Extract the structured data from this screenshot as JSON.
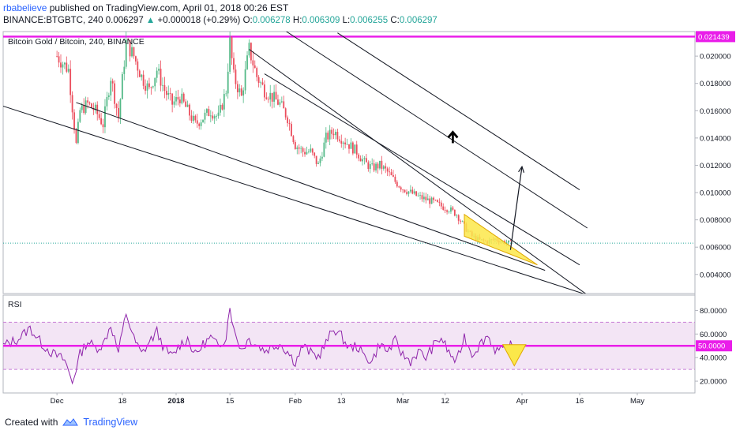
{
  "header": {
    "author": "rbabelieve",
    "published_text": "published on TradingView.com, April 01, 2018 00:26 EST",
    "symbol": "BINANCE:BTGBTC, 240",
    "last": "0.006297",
    "change_arrow": "▲",
    "change": "+0.000018 (+0.29%)",
    "open_label": "O:",
    "open": "0.006278",
    "high_label": "H:",
    "high": "0.006309",
    "low_label": "L:",
    "low": "0.006255",
    "close_label": "C:",
    "close": "0.006297"
  },
  "colors": {
    "accent_magenta": "#e91ee9",
    "up_candle": "#53b987",
    "down_candle": "#eb4d5c",
    "rsi_line": "#8e24aa",
    "wedge_fill": "#fbe84a",
    "trendline": "#131722",
    "author_link": "#2962ff",
    "dotted_current": "#26a69a"
  },
  "chart_data": [
    {
      "type": "candlestick",
      "title": "Bitcoin Gold / Bitcoin, 240, BINANCE",
      "ylim": [
        0.0026,
        0.0218
      ],
      "y_ticks": [
        "0.020000",
        "0.018000",
        "0.016000",
        "0.014000",
        "0.012000",
        "0.010000",
        "0.008000",
        "0.006000",
        "0.004000"
      ],
      "y_tick_values": [
        0.02,
        0.018,
        0.016,
        0.014,
        0.012,
        0.01,
        0.008,
        0.006,
        0.004
      ],
      "x_ticks": [
        "Dec",
        "18",
        "2018",
        "15",
        "Feb",
        "13",
        "Mar",
        "12",
        "Apr",
        "16",
        "May"
      ],
      "x_tick_days": [
        0,
        17,
        31,
        45,
        62,
        74,
        90,
        101,
        121,
        136,
        151
      ],
      "xlim_days": [
        -14,
        166
      ],
      "horizontal_line": {
        "value": 0.02143,
        "label": "0.021439"
      },
      "current_price": 0.006297,
      "series": [
        {
          "name": "close",
          "points": [
            [
              -14,
              0.0205
            ],
            [
              0,
              0.02
            ],
            [
              3,
              0.019
            ],
            [
              5,
              0.0135
            ],
            [
              6,
              0.016
            ],
            [
              8,
              0.0165
            ],
            [
              10,
              0.016
            ],
            [
              12,
              0.015
            ],
            [
              14,
              0.0185
            ],
            [
              16,
              0.0155
            ],
            [
              18,
              0.021
            ],
            [
              20,
              0.02
            ],
            [
              22,
              0.0185
            ],
            [
              24,
              0.0175
            ],
            [
              26,
              0.019
            ],
            [
              28,
              0.0175
            ],
            [
              30,
              0.0165
            ],
            [
              32,
              0.017
            ],
            [
              34,
              0.016
            ],
            [
              36,
              0.015
            ],
            [
              38,
              0.0155
            ],
            [
              40,
              0.016
            ],
            [
              42,
              0.0155
            ],
            [
              44,
              0.0175
            ],
            [
              45,
              0.021
            ],
            [
              46,
              0.0185
            ],
            [
              48,
              0.017
            ],
            [
              50,
              0.0205
            ],
            [
              52,
              0.0185
            ],
            [
              54,
              0.0175
            ],
            [
              56,
              0.017
            ],
            [
              58,
              0.0165
            ],
            [
              60,
              0.0155
            ],
            [
              62,
              0.0135
            ],
            [
              64,
              0.013
            ],
            [
              66,
              0.013
            ],
            [
              68,
              0.012
            ],
            [
              70,
              0.014
            ],
            [
              72,
              0.0145
            ],
            [
              74,
              0.014
            ],
            [
              76,
              0.0135
            ],
            [
              78,
              0.013
            ],
            [
              80,
              0.0122
            ],
            [
              82,
              0.0118
            ],
            [
              84,
              0.012
            ],
            [
              86,
              0.0115
            ],
            [
              88,
              0.0108
            ],
            [
              90,
              0.0103
            ],
            [
              92,
              0.01
            ],
            [
              94,
              0.0097
            ],
            [
              96,
              0.0095
            ],
            [
              98,
              0.0093
            ],
            [
              100,
              0.009
            ],
            [
              102,
              0.0088
            ],
            [
              104,
              0.0084
            ],
            [
              106,
              0.0075
            ],
            [
              108,
              0.0068
            ],
            [
              110,
              0.0065
            ],
            [
              112,
              0.0064
            ],
            [
              114,
              0.0066
            ],
            [
              116,
              0.0064
            ],
            [
              118,
              0.0063
            ]
          ]
        }
      ],
      "annotations": [
        {
          "type": "trendline",
          "from": [
            -18,
            0.0167
          ],
          "to": [
            138,
            0.0025
          ]
        },
        {
          "type": "trendline",
          "from": [
            5,
            0.0166
          ],
          "to": [
            127,
            0.0043
          ]
        },
        {
          "type": "trendline",
          "from": [
            50,
            0.0205
          ],
          "to": [
            138,
            0.0025
          ]
        },
        {
          "type": "trendline",
          "from": [
            54,
            0.0187
          ],
          "to": [
            136,
            0.0047
          ]
        },
        {
          "type": "trendline",
          "from": [
            57,
            0.0223
          ],
          "to": [
            138,
            0.0074
          ]
        },
        {
          "type": "trendline",
          "from": [
            73,
            0.0217
          ],
          "to": [
            136,
            0.0102
          ]
        },
        {
          "type": "triangle",
          "points": [
            [
              106,
              0.0084
            ],
            [
              106,
              0.0068
            ],
            [
              125,
              0.0047
            ]
          ]
        },
        {
          "type": "arrow",
          "from": [
            118,
            0.0058
          ],
          "to": [
            121,
            0.0119
          ]
        },
        {
          "type": "up-arrow-glyph",
          "at": [
            103,
            0.0142
          ]
        }
      ]
    },
    {
      "type": "line",
      "title": "RSI",
      "ylim": [
        10,
        93
      ],
      "y_ticks": [
        "80.0000",
        "60.0000",
        "40.0000",
        "20.0000"
      ],
      "y_tick_values": [
        80,
        60,
        40,
        20
      ],
      "band": [
        30,
        70
      ],
      "midline": {
        "value": 50,
        "label": "50.0000"
      },
      "series": [
        {
          "name": "RSI",
          "points": [
            [
              -14,
              50
            ],
            [
              -10,
              56
            ],
            [
              -7,
              65
            ],
            [
              -4,
              52
            ],
            [
              -1,
              43
            ],
            [
              2,
              38
            ],
            [
              4,
              19
            ],
            [
              6,
              43
            ],
            [
              8,
              54
            ],
            [
              10,
              48
            ],
            [
              12,
              51
            ],
            [
              14,
              68
            ],
            [
              16,
              44
            ],
            [
              18,
              78
            ],
            [
              20,
              56
            ],
            [
              22,
              43
            ],
            [
              24,
              53
            ],
            [
              26,
              62
            ],
            [
              28,
              47
            ],
            [
              30,
              41
            ],
            [
              32,
              51
            ],
            [
              34,
              56
            ],
            [
              36,
              42
            ],
            [
              38,
              51
            ],
            [
              40,
              57
            ],
            [
              42,
              49
            ],
            [
              44,
              58
            ],
            [
              45,
              85
            ],
            [
              46,
              63
            ],
            [
              48,
              47
            ],
            [
              50,
              56
            ],
            [
              52,
              51
            ],
            [
              54,
              46
            ],
            [
              56,
              49
            ],
            [
              58,
              52
            ],
            [
              60,
              45
            ],
            [
              62,
              36
            ],
            [
              64,
              50
            ],
            [
              66,
              44
            ],
            [
              68,
              41
            ],
            [
              70,
              52
            ],
            [
              72,
              65
            ],
            [
              74,
              58
            ],
            [
              76,
              48
            ],
            [
              78,
              50
            ],
            [
              80,
              41
            ],
            [
              82,
              37
            ],
            [
              84,
              52
            ],
            [
              86,
              45
            ],
            [
              88,
              54
            ],
            [
              90,
              42
            ],
            [
              92,
              37
            ],
            [
              94,
              45
            ],
            [
              96,
              40
            ],
            [
              98,
              50
            ],
            [
              100,
              57
            ],
            [
              102,
              44
            ],
            [
              104,
              36
            ],
            [
              106,
              58
            ],
            [
              108,
              43
            ],
            [
              110,
              51
            ],
            [
              112,
              59
            ],
            [
              114,
              47
            ],
            [
              116,
              45
            ],
            [
              118,
              50
            ],
            [
              120,
              44
            ]
          ]
        }
      ],
      "annotations": [
        {
          "type": "triangle",
          "points": [
            [
              116,
              51
            ],
            [
              122,
              51
            ],
            [
              119,
              33
            ]
          ]
        }
      ]
    }
  ],
  "footer": {
    "created_with": "Created with",
    "brand": "TradingView"
  }
}
